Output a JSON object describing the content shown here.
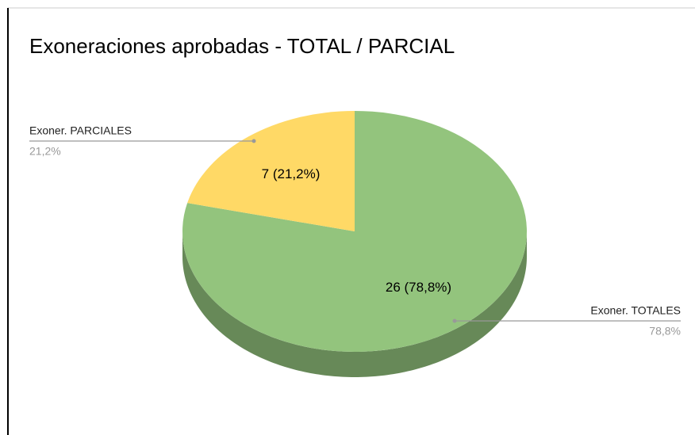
{
  "chart_data": {
    "type": "pie3d",
    "title": "Exoneraciones aprobadas  - TOTAL / PARCIAL",
    "categories": [
      "Exoner. TOTALES",
      "Exoner. PARCIALES"
    ],
    "values": [
      26,
      7
    ],
    "value_labels": [
      "26 (78,8%)",
      "7 (21,2%)"
    ],
    "percentages": [
      78.8,
      21.2
    ],
    "percent_labels": [
      "78,8%",
      "21,2%"
    ],
    "colors": [
      "#93c47d",
      "#ffd966"
    ]
  }
}
